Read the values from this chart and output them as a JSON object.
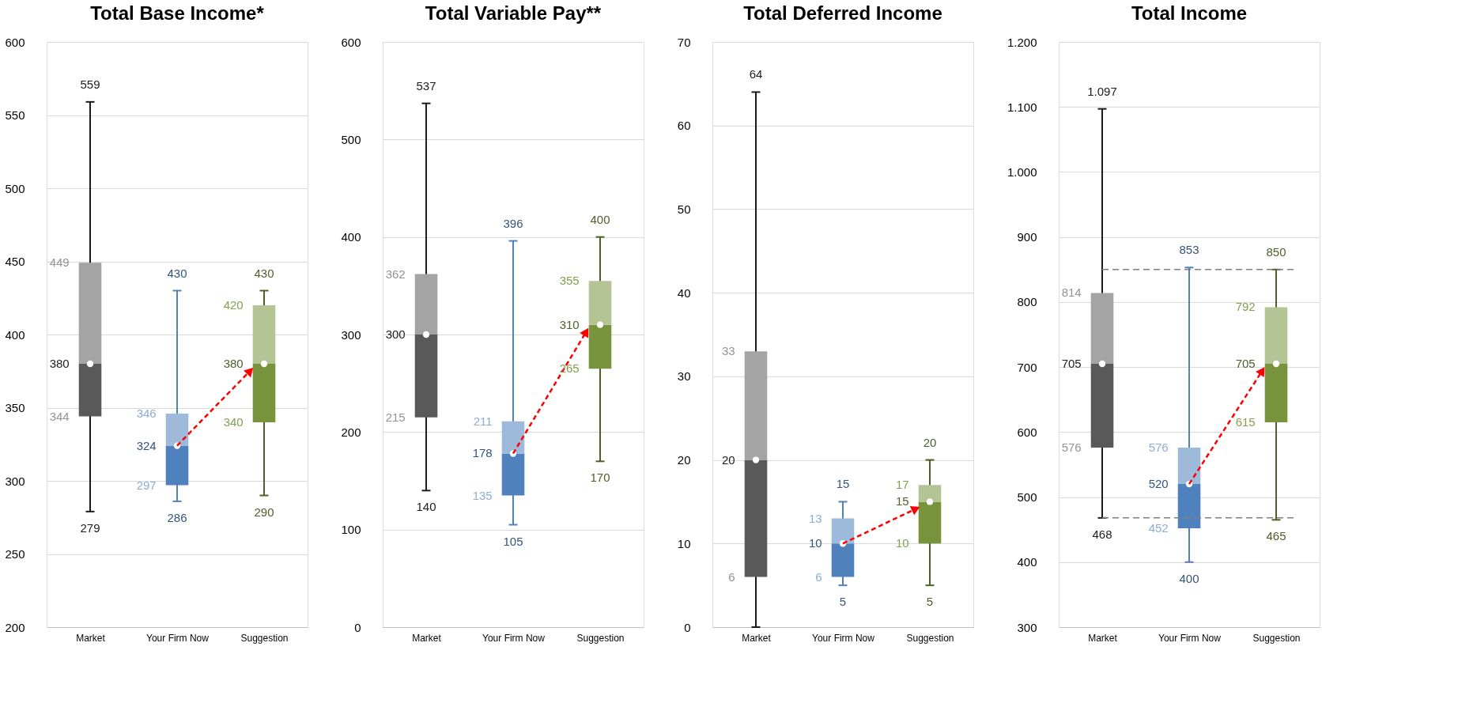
{
  "chart_data": [
    {
      "type": "box",
      "title": "Total Base Income*",
      "categories": [
        "Market",
        "Your Firm Now",
        "Suggestion"
      ],
      "colors": [
        "#595959",
        "#4f81bd",
        "#77933c"
      ],
      "boxes": [
        {
          "low": 279,
          "q1": 344,
          "median": 380,
          "q3": 449,
          "high": 559,
          "mean": 380
        },
        {
          "low": 286,
          "q1": 297,
          "median": 324,
          "q3": 346,
          "high": 430,
          "mean": 324
        },
        {
          "low": 290,
          "q1": 340,
          "median": 380,
          "q3": 420,
          "high": 430,
          "mean": 380
        }
      ],
      "annotations": [
        {
          "text": "559",
          "x": "Market",
          "y": 559
        },
        {
          "text": "449",
          "x": "Market",
          "y": 449
        },
        {
          "text": "380",
          "x": "Market",
          "y": 380
        },
        {
          "text": "344",
          "x": "Market",
          "y": 344
        },
        {
          "text": "279",
          "x": "Market",
          "y": 279
        },
        {
          "text": "430",
          "x": "Your Firm Now",
          "y": 430
        },
        {
          "text": "346",
          "x": "Your Firm Now",
          "y": 346
        },
        {
          "text": "324",
          "x": "Your Firm Now",
          "y": 324
        },
        {
          "text": "297",
          "x": "Your Firm Now",
          "y": 297
        },
        {
          "text": "286",
          "x": "Your Firm Now",
          "y": 286
        },
        {
          "text": "430",
          "x": "Suggestion",
          "y": 430
        },
        {
          "text": "420",
          "x": "Suggestion",
          "y": 420
        },
        {
          "text": "380",
          "x": "Suggestion",
          "y": 380
        },
        {
          "text": "340",
          "x": "Suggestion",
          "y": 340
        },
        {
          "text": "290",
          "x": "Suggestion",
          "y": 290
        }
      ],
      "ylim": [
        200,
        600
      ],
      "yticks": [
        200,
        250,
        300,
        350,
        400,
        450,
        500,
        550,
        600
      ],
      "grid": "y",
      "legend": false
    },
    {
      "type": "box",
      "title": "Total Variable Pay**",
      "categories": [
        "Market",
        "Your Firm Now",
        "Suggestion"
      ],
      "colors": [
        "#595959",
        "#4f81bd",
        "#77933c"
      ],
      "boxes": [
        {
          "low": 140,
          "q1": 215,
          "median": 300,
          "q3": 362,
          "high": 537,
          "mean": 300
        },
        {
          "low": 105,
          "q1": 135,
          "median": 178,
          "q3": 211,
          "high": 396,
          "mean": 178
        },
        {
          "low": 170,
          "q1": 265,
          "median": 310,
          "q3": 355,
          "high": 400,
          "mean": 310
        }
      ],
      "annotations": [
        {
          "text": "537",
          "x": "Market",
          "y": 537
        },
        {
          "text": "362",
          "x": "Market",
          "y": 362
        },
        {
          "text": "300",
          "x": "Market",
          "y": 300
        },
        {
          "text": "215",
          "x": "Market",
          "y": 215
        },
        {
          "text": "140",
          "x": "Market",
          "y": 140
        },
        {
          "text": "396",
          "x": "Your Firm Now",
          "y": 396
        },
        {
          "text": "211",
          "x": "Your Firm Now",
          "y": 211
        },
        {
          "text": "178",
          "x": "Your Firm Now",
          "y": 178
        },
        {
          "text": "135",
          "x": "Your Firm Now",
          "y": 135
        },
        {
          "text": "105",
          "x": "Your Firm Now",
          "y": 105
        },
        {
          "text": "400",
          "x": "Suggestion",
          "y": 400
        },
        {
          "text": "355",
          "x": "Suggestion",
          "y": 355
        },
        {
          "text": "310",
          "x": "Suggestion",
          "y": 310
        },
        {
          "text": "265",
          "x": "Suggestion",
          "y": 265
        },
        {
          "text": "170",
          "x": "Suggestion",
          "y": 170
        }
      ],
      "ylim": [
        0,
        600
      ],
      "yticks": [
        0,
        100,
        200,
        300,
        400,
        500,
        600
      ],
      "grid": "y",
      "legend": false
    },
    {
      "type": "box",
      "title": "Total Deferred Income",
      "categories": [
        "Market",
        "Your Firm Now",
        "Suggestion"
      ],
      "colors": [
        "#595959",
        "#4f81bd",
        "#77933c"
      ],
      "boxes": [
        {
          "low": 0,
          "q1": 6,
          "median": 20,
          "q3": 33,
          "high": 64,
          "mean": 20
        },
        {
          "low": 5,
          "q1": 6,
          "median": 10,
          "q3": 13,
          "high": 15,
          "mean": 10
        },
        {
          "low": 5,
          "q1": 10,
          "median": 15,
          "q3": 17,
          "high": 20,
          "mean": 15
        }
      ],
      "annotations": [
        {
          "text": "64",
          "x": "Market",
          "y": 64
        },
        {
          "text": "33",
          "x": "Market",
          "y": 33
        },
        {
          "text": "20",
          "x": "Market",
          "y": 20
        },
        {
          "text": "6",
          "x": "Market",
          "y": 6
        },
        {
          "text": "15",
          "x": "Your Firm Now",
          "y": 15
        },
        {
          "text": "13",
          "x": "Your Firm Now",
          "y": 13
        },
        {
          "text": "10",
          "x": "Your Firm Now",
          "y": 10
        },
        {
          "text": "6",
          "x": "Your Firm Now",
          "y": 6
        },
        {
          "text": "5",
          "x": "Your Firm Now",
          "y": 5
        },
        {
          "text": "20",
          "x": "Suggestion",
          "y": 20
        },
        {
          "text": "17",
          "x": "Suggestion",
          "y": 17
        },
        {
          "text": "15",
          "x": "Suggestion",
          "y": 15
        },
        {
          "text": "10",
          "x": "Suggestion",
          "y": 10
        },
        {
          "text": "5",
          "x": "Suggestion",
          "y": 5
        }
      ],
      "ylim": [
        0,
        70
      ],
      "yticks": [
        0,
        10,
        20,
        30,
        40,
        50,
        60,
        70
      ],
      "grid": "y",
      "legend": false
    },
    {
      "type": "box",
      "title": "Total Income",
      "categories": [
        "Market",
        "Your Firm Now",
        "Suggestion"
      ],
      "colors": [
        "#595959",
        "#4f81bd",
        "#77933c"
      ],
      "boxes": [
        {
          "low": 468,
          "q1": 576,
          "median": 705,
          "q3": 814,
          "high": 1097,
          "mean": 705
        },
        {
          "low": 400,
          "q1": 452,
          "median": 520,
          "q3": 576,
          "high": 853,
          "mean": 520
        },
        {
          "low": 465,
          "q1": 615,
          "median": 705,
          "q3": 792,
          "high": 850,
          "mean": 705
        }
      ],
      "annotations": [
        {
          "text": "1.097",
          "x": "Market",
          "y": 1097
        },
        {
          "text": "814",
          "x": "Market",
          "y": 814
        },
        {
          "text": "705",
          "x": "Market",
          "y": 705
        },
        {
          "text": "576",
          "x": "Market",
          "y": 576
        },
        {
          "text": "468",
          "x": "Market",
          "y": 468
        },
        {
          "text": "853",
          "x": "Your Firm Now",
          "y": 853
        },
        {
          "text": "576",
          "x": "Your Firm Now",
          "y": 576
        },
        {
          "text": "520",
          "x": "Your Firm Now",
          "y": 520
        },
        {
          "text": "452",
          "x": "Your Firm Now",
          "y": 452
        },
        {
          "text": "400",
          "x": "Your Firm Now",
          "y": 400
        },
        {
          "text": "850",
          "x": "Suggestion",
          "y": 850
        },
        {
          "text": "792",
          "x": "Suggestion",
          "y": 792
        },
        {
          "text": "705",
          "x": "Suggestion",
          "y": 705
        },
        {
          "text": "615",
          "x": "Suggestion",
          "y": 615
        },
        {
          "text": "465",
          "x": "Suggestion",
          "y": 465
        }
      ],
      "ylim": [
        300,
        1200
      ],
      "yticks": [
        300,
        400,
        500,
        600,
        700,
        800,
        900,
        {
          "value": 1000,
          "label": "1.000"
        },
        {
          "value": 1100,
          "label": "1.100"
        },
        {
          "value": 1200,
          "label": "1.200"
        }
      ],
      "ref_lines": [
        {
          "axis": "y",
          "value": 850,
          "label": null,
          "color": "#808080",
          "line_style": "dashed"
        },
        {
          "axis": "y",
          "value": 468,
          "label": null,
          "color": "#808080",
          "line_style": "dashed"
        }
      ],
      "grid": "y",
      "legend": false
    }
  ]
}
